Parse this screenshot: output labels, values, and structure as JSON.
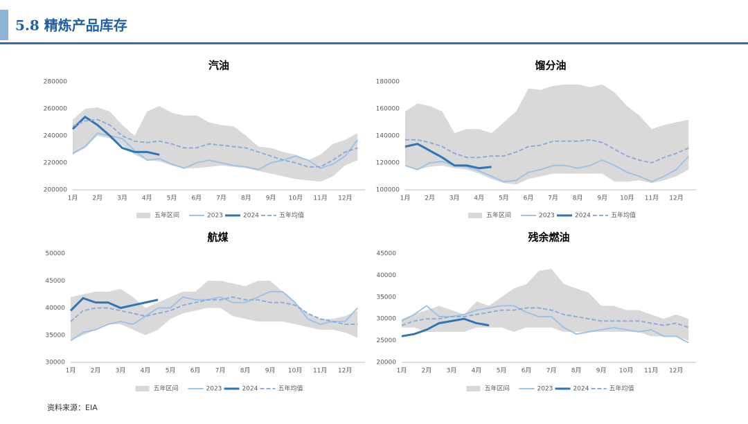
{
  "header": {
    "title": "5.8 精炼产品库存"
  },
  "source": "资料来源：EIA",
  "chart_data": [
    {
      "type": "band-line",
      "title": "汽油",
      "categories": [
        "1月",
        null,
        "2月",
        null,
        "3月",
        null,
        "4月",
        null,
        "5月",
        null,
        "6月",
        null,
        "7月",
        null,
        "8月",
        null,
        "9月",
        null,
        "10月",
        null,
        "11月",
        null,
        "12月",
        null
      ],
      "ylim": [
        200000,
        280000
      ],
      "yticks": [
        200000,
        220000,
        240000,
        260000,
        280000
      ],
      "series": [
        {
          "name": "五年区间",
          "color": "#d9d9d9",
          "values": [
            252000,
            260000,
            261000,
            258000,
            248000,
            240000,
            258000,
            262000,
            257000,
            255000,
            255000,
            250000,
            248000,
            247000,
            240000,
            232000,
            231000,
            228000,
            226000,
            222000,
            226000,
            234000,
            237000,
            242000
          ],
          "low": [
            226000,
            231000,
            240000,
            238000,
            233000,
            226000,
            222000,
            221000,
            218000,
            216000,
            216000,
            217000,
            218000,
            217000,
            216000,
            214000,
            212000,
            210000,
            208000,
            207000,
            206000,
            210000,
            218000,
            222000
          ]
        },
        {
          "name": "2023",
          "color": "#9dc3e6",
          "values": [
            227000,
            232000,
            242000,
            240000,
            238000,
            229000,
            222000,
            223000,
            219000,
            216000,
            220000,
            222000,
            220000,
            218000,
            217000,
            215000,
            220000,
            222000,
            225000,
            222000,
            216000,
            219000,
            225000,
            237000
          ]
        },
        {
          "name": "2024",
          "color": "#2e75b6",
          "values": [
            245000,
            254000,
            248000,
            240000,
            231000,
            228000,
            228000,
            226000,
            null,
            null,
            null,
            null,
            null,
            null,
            null,
            null,
            null,
            null,
            null,
            null,
            null,
            null,
            null,
            null
          ]
        },
        {
          "name": "五年均值",
          "color": "#8faadc",
          "dashed": true,
          "values": [
            247000,
            251000,
            252000,
            248000,
            240000,
            236000,
            235000,
            236000,
            234000,
            231000,
            231000,
            234000,
            233000,
            232000,
            231000,
            228000,
            225000,
            222000,
            220000,
            217000,
            217000,
            222000,
            228000,
            231000
          ]
        }
      ]
    },
    {
      "type": "band-line",
      "title": "馏分油",
      "categories": [
        "1月",
        null,
        "2月",
        null,
        "3月",
        null,
        "4月",
        null,
        "5月",
        null,
        "6月",
        null,
        "7月",
        null,
        "8月",
        null,
        "9月",
        null,
        "10月",
        null,
        "11月",
        null,
        "12月",
        null
      ],
      "ylim": [
        100000,
        180000
      ],
      "yticks": [
        100000,
        120000,
        140000,
        160000,
        180000
      ],
      "series": [
        {
          "name": "五年区间",
          "color": "#d9d9d9",
          "values": [
            158000,
            164000,
            162000,
            158000,
            142000,
            145000,
            145000,
            142000,
            150000,
            158000,
            175000,
            174000,
            177000,
            178000,
            178000,
            176000,
            178000,
            172000,
            162000,
            155000,
            145000,
            148000,
            150000,
            152000
          ],
          "low": [
            118000,
            115000,
            117000,
            118000,
            116000,
            115000,
            112000,
            108000,
            105000,
            104000,
            108000,
            110000,
            112000,
            112000,
            112000,
            112000,
            112000,
            106000,
            106000,
            107000,
            105000,
            107000,
            110000,
            115000
          ]
        },
        {
          "name": "2023",
          "color": "#9dc3e6",
          "values": [
            118000,
            115000,
            120000,
            121000,
            118000,
            117000,
            114000,
            110000,
            106000,
            107000,
            113000,
            115000,
            118000,
            118000,
            116000,
            118000,
            122000,
            118000,
            113000,
            110000,
            106000,
            110000,
            115000,
            125000
          ]
        },
        {
          "name": "2024",
          "color": "#2e75b6",
          "values": [
            132000,
            134000,
            129000,
            124000,
            118000,
            118000,
            116000,
            117000,
            null,
            null,
            null,
            null,
            null,
            null,
            null,
            null,
            null,
            null,
            null,
            null,
            null,
            null,
            null,
            null
          ]
        },
        {
          "name": "五年均值",
          "color": "#8faadc",
          "dashed": true,
          "values": [
            137000,
            137000,
            135000,
            132000,
            127000,
            124000,
            124000,
            125000,
            125000,
            128000,
            132000,
            133000,
            136000,
            136000,
            136000,
            137000,
            135000,
            130000,
            125000,
            122000,
            120000,
            124000,
            127000,
            131000
          ]
        }
      ]
    },
    {
      "type": "band-line",
      "title": "航煤",
      "categories": [
        "1月",
        null,
        "2月",
        null,
        "3月",
        null,
        "4月",
        null,
        "5月",
        null,
        "6月",
        null,
        "7月",
        null,
        "8月",
        null,
        "9月",
        null,
        "10月",
        null,
        "11月",
        null,
        "12月",
        null
      ],
      "ylim": [
        30000,
        50000
      ],
      "yticks": [
        30000,
        35000,
        40000,
        45000,
        50000
      ],
      "series": [
        {
          "name": "五年区间",
          "color": "#d9d9d9",
          "values": [
            42000,
            42500,
            43000,
            43000,
            43500,
            42000,
            40000,
            41000,
            42000,
            43000,
            43000,
            45000,
            45000,
            44500,
            44000,
            45000,
            45000,
            43000,
            41000,
            39000,
            38000,
            38000,
            38500,
            39500
          ],
          "low": [
            34000,
            35000,
            36000,
            37000,
            37000,
            36000,
            35000,
            36000,
            38000,
            39000,
            39500,
            40000,
            40000,
            38500,
            38000,
            37500,
            37500,
            37500,
            37000,
            36500,
            36000,
            36000,
            35500,
            34500
          ]
        },
        {
          "name": "2023",
          "color": "#9dc3e6",
          "values": [
            34000,
            35500,
            36000,
            37000,
            37500,
            37000,
            38500,
            40000,
            40000,
            42000,
            41500,
            41500,
            42000,
            41000,
            41000,
            42000,
            43000,
            43000,
            41000,
            38000,
            37000,
            37500,
            37500,
            40000
          ]
        },
        {
          "name": "2024",
          "color": "#2e75b6",
          "values": [
            39500,
            41800,
            41000,
            41000,
            40000,
            40500,
            41000,
            41500,
            null,
            null,
            null,
            null,
            null,
            null,
            null,
            null,
            null,
            null,
            null,
            null,
            null,
            null,
            null,
            null
          ]
        },
        {
          "name": "五年均值",
          "color": "#8faadc",
          "dashed": true,
          "values": [
            37500,
            39500,
            40000,
            40000,
            39500,
            39000,
            38500,
            39000,
            39500,
            40500,
            41000,
            41500,
            41500,
            42000,
            41500,
            41500,
            41000,
            41000,
            40500,
            39000,
            38000,
            37500,
            37000,
            37000
          ]
        }
      ]
    },
    {
      "type": "band-line",
      "title": "残余燃油",
      "categories": [
        "1月",
        null,
        "2月",
        null,
        "3月",
        null,
        "4月",
        null,
        "5月",
        null,
        "6月",
        null,
        "7月",
        null,
        "8月",
        null,
        "9月",
        null,
        "10月",
        null,
        "11月",
        null,
        "12月",
        null
      ],
      "ylim": [
        20000,
        45000
      ],
      "yticks": [
        20000,
        25000,
        30000,
        35000,
        40000,
        45000
      ],
      "series": [
        {
          "name": "五年区间",
          "color": "#d9d9d9",
          "values": [
            30000,
            31000,
            32000,
            33000,
            32000,
            31000,
            34000,
            33000,
            35000,
            37000,
            38000,
            41000,
            41500,
            38000,
            37000,
            36000,
            33000,
            33000,
            32000,
            32000,
            31000,
            30000,
            31000,
            30000
          ],
          "low": [
            28000,
            28000,
            27000,
            27000,
            27000,
            27000,
            28000,
            28000,
            28000,
            27000,
            28000,
            28000,
            28000,
            27000,
            27000,
            27000,
            27000,
            27000,
            27000,
            27000,
            26000,
            26000,
            26000,
            25000
          ]
        },
        {
          "name": "2023",
          "color": "#9dc3e6",
          "values": [
            29500,
            31000,
            33000,
            30500,
            30500,
            31000,
            32000,
            32500,
            33000,
            33000,
            31500,
            30500,
            30500,
            28000,
            26500,
            27000,
            27500,
            28000,
            27500,
            27000,
            27500,
            26000,
            26000,
            24500
          ]
        },
        {
          "name": "2024",
          "color": "#2e75b6",
          "values": [
            26000,
            26500,
            27500,
            29000,
            29500,
            30000,
            29000,
            28500,
            null,
            null,
            null,
            null,
            null,
            null,
            null,
            null,
            null,
            null,
            null,
            null,
            null,
            null,
            null,
            null
          ]
        },
        {
          "name": "五年均值",
          "color": "#8faadc",
          "dashed": true,
          "values": [
            28500,
            29500,
            30000,
            30000,
            30500,
            30500,
            31000,
            31500,
            32000,
            32000,
            32500,
            32500,
            32000,
            31000,
            30500,
            30000,
            29500,
            29500,
            29500,
            29500,
            29000,
            28500,
            29000,
            28000
          ]
        }
      ]
    }
  ]
}
